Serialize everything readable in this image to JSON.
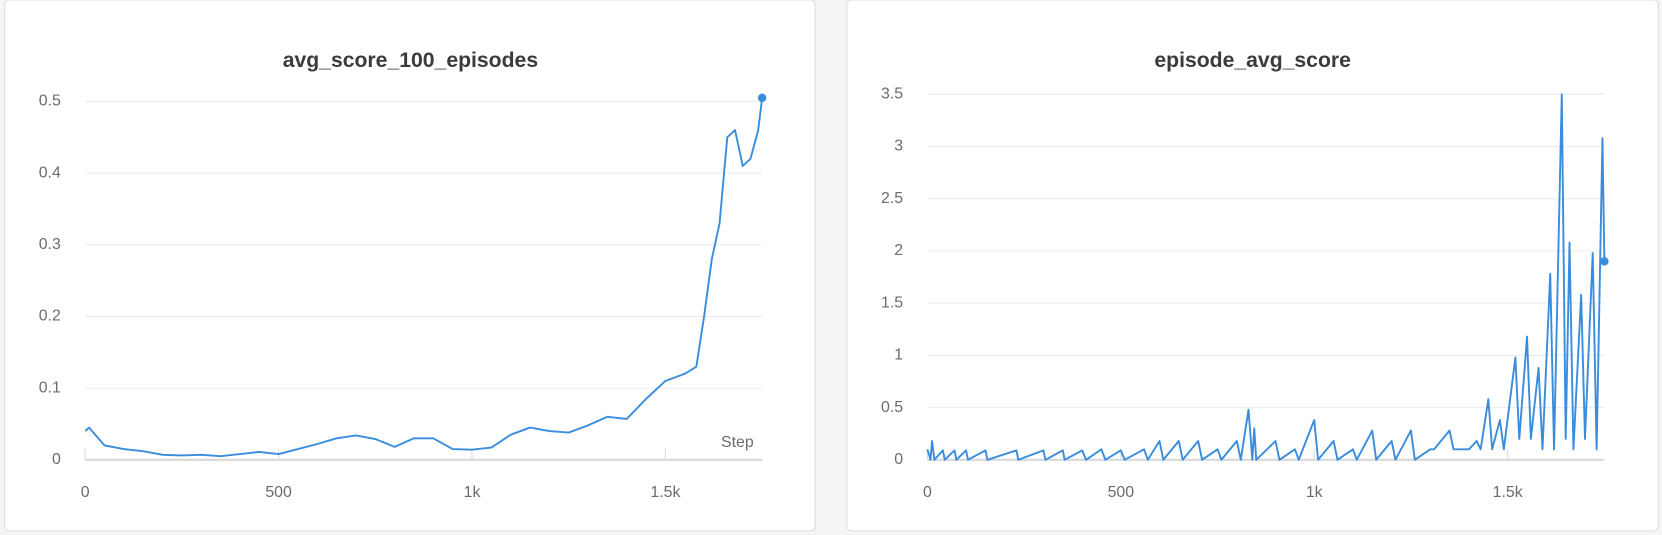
{
  "chart_data": [
    {
      "type": "line",
      "title": "avg_score_100_episodes",
      "xlabel": "Step",
      "color": "#3a8ddd",
      "x": [
        0,
        10,
        50,
        100,
        150,
        200,
        250,
        300,
        350,
        400,
        450,
        500,
        550,
        600,
        650,
        700,
        750,
        800,
        850,
        900,
        950,
        1000,
        1050,
        1100,
        1150,
        1200,
        1250,
        1300,
        1350,
        1400,
        1450,
        1500,
        1550,
        1580,
        1600,
        1620,
        1640,
        1660,
        1680,
        1700,
        1720,
        1740,
        1750
      ],
      "values": [
        0.04,
        0.045,
        0.02,
        0.015,
        0.012,
        0.007,
        0.006,
        0.007,
        0.005,
        0.008,
        0.011,
        0.008,
        0.015,
        0.022,
        0.03,
        0.034,
        0.029,
        0.018,
        0.03,
        0.03,
        0.015,
        0.014,
        0.017,
        0.035,
        0.045,
        0.04,
        0.038,
        0.048,
        0.06,
        0.057,
        0.085,
        0.11,
        0.12,
        0.13,
        0.2,
        0.28,
        0.33,
        0.45,
        0.46,
        0.41,
        0.42,
        0.46,
        0.505
      ],
      "xlim": [
        0,
        1750
      ],
      "ylim": [
        0,
        0.51
      ],
      "xticks": [
        0,
        500,
        {
          "value": 1000,
          "label": "1k"
        },
        {
          "value": 1500,
          "label": "1.5k"
        }
      ],
      "yticks": [
        0,
        0.1,
        0.2,
        0.3,
        0.4,
        0.5
      ],
      "grid": true
    },
    {
      "type": "line",
      "title": "episode_avg_score",
      "color": "#3a8ddd",
      "x": [
        0,
        8,
        12,
        18,
        40,
        45,
        70,
        75,
        100,
        105,
        150,
        155,
        230,
        235,
        300,
        305,
        350,
        355,
        400,
        410,
        450,
        460,
        500,
        510,
        560,
        570,
        600,
        610,
        650,
        660,
        700,
        710,
        750,
        760,
        800,
        810,
        830,
        840,
        845,
        850,
        900,
        910,
        950,
        960,
        1000,
        1010,
        1050,
        1060,
        1100,
        1110,
        1150,
        1160,
        1200,
        1210,
        1250,
        1260,
        1300,
        1310,
        1350,
        1360,
        1400,
        1420,
        1430,
        1450,
        1460,
        1480,
        1490,
        1520,
        1530,
        1550,
        1560,
        1580,
        1590,
        1610,
        1620,
        1640,
        1650,
        1660,
        1670,
        1690,
        1700,
        1720,
        1730,
        1745,
        1750
      ],
      "values": [
        0.1,
        0,
        0.18,
        0,
        0.09,
        0,
        0.09,
        0,
        0.09,
        0,
        0.09,
        0,
        0.09,
        0,
        0.09,
        0,
        0.09,
        0,
        0.09,
        0,
        0.1,
        0,
        0.09,
        0,
        0.1,
        0,
        0.18,
        0,
        0.18,
        0,
        0.18,
        0,
        0.1,
        0,
        0.18,
        0,
        0.48,
        0,
        0.3,
        0,
        0.18,
        0,
        0.1,
        0,
        0.38,
        0,
        0.18,
        0,
        0.1,
        0,
        0.28,
        0,
        0.18,
        0,
        0.28,
        0,
        0.1,
        0.1,
        0.28,
        0.1,
        0.1,
        0.18,
        0.1,
        0.58,
        0.1,
        0.38,
        0.1,
        0.98,
        0.2,
        1.18,
        0.2,
        0.88,
        0.1,
        1.78,
        0.1,
        3.5,
        0.2,
        2.08,
        0.1,
        1.58,
        0.2,
        1.98,
        0.1,
        3.08,
        1.9
      ],
      "xlim": [
        0,
        1750
      ],
      "ylim": [
        0,
        3.5
      ],
      "xticks": [
        0,
        500,
        {
          "value": 1000,
          "label": "1k"
        },
        {
          "value": 1500,
          "label": "1.5k"
        }
      ],
      "yticks": [
        0,
        0.5,
        1,
        1.5,
        2,
        2.5,
        3,
        3.5
      ],
      "grid": true
    }
  ]
}
